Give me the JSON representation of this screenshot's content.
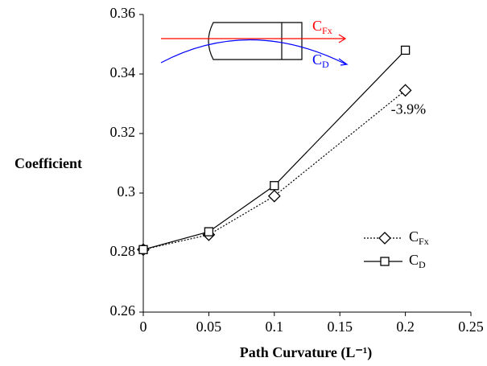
{
  "chart_data": {
    "type": "line",
    "ylabel": "Coefficient",
    "xlabel": "Path Curvature (L⁻¹)",
    "x": [
      0,
      0.05,
      0.1,
      0.2
    ],
    "series": [
      {
        "name": "CFx",
        "color": "#000000",
        "dash": "dotted",
        "marker": "diamond",
        "values": [
          0.281,
          0.286,
          0.299,
          0.3345
        ]
      },
      {
        "name": "CD",
        "color": "#000000",
        "dash": "solid",
        "marker": "square",
        "values": [
          0.281,
          0.287,
          0.3025,
          0.348
        ]
      }
    ],
    "xlim": [
      0,
      0.25
    ],
    "xticks": [
      0,
      0.05,
      0.1,
      0.15,
      0.2,
      0.25
    ],
    "ylim": [
      0.26,
      0.36
    ],
    "yticks": [
      0.26,
      0.28,
      0.3,
      0.32,
      0.34,
      0.36
    ],
    "grid": false,
    "legend": "lower right",
    "annotation": "-3.9%",
    "inset_labels": [
      {
        "text": "CFx",
        "color": "#ff0000"
      },
      {
        "text": "CD",
        "color": "#0000ff"
      }
    ]
  }
}
